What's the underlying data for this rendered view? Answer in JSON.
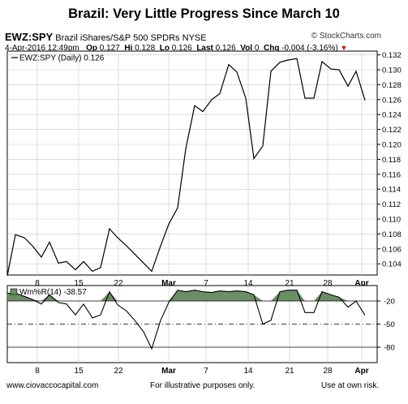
{
  "title": "Brazil: Very Little Progress Since March 10",
  "header": {
    "symbol": "EWZ:SPY",
    "description": "Brazil iShares/S&P 500 SPDRs",
    "exchange": "NYSE",
    "brand": "© StockCharts.com",
    "date": "4-Apr-2016 12:49pm",
    "op_label": "Op",
    "op": "0.127",
    "hi_label": "Hi",
    "hi": "0.128",
    "lo_label": "Lo",
    "lo": "0.126",
    "last_label": "Last",
    "last": "0.126",
    "vol_label": "Vol",
    "vol": "0",
    "chg_label": "Chg",
    "chg": "-0.004 (-3.16%)"
  },
  "footer": {
    "left": "www.ciovaccocapital.com",
    "center": "For illustrative purposes only.",
    "right": "Use at own risk."
  },
  "colors": {
    "line": "#000000",
    "fill": "#6b8e64",
    "grid": "#c8c8c8",
    "down_arrow": "#cc0000"
  },
  "chart_data": [
    {
      "type": "line",
      "legend": "EWZ:SPY (Daily) 0.126",
      "x_ticks": [
        "8",
        "15",
        "22",
        "Mar",
        "7",
        "14",
        "21",
        "28",
        "Apr"
      ],
      "y_ticks": [
        "0.104",
        "0.106",
        "0.108",
        "0.110",
        "0.112",
        "0.114",
        "0.116",
        "0.118",
        "0.120",
        "0.122",
        "0.124",
        "0.126",
        "0.128",
        "0.130",
        "0.132"
      ],
      "ylim": [
        0.1025,
        0.1325
      ],
      "values": [
        0.1024,
        0.1079,
        0.1075,
        0.1064,
        0.1049,
        0.1069,
        0.1041,
        0.1043,
        0.1032,
        0.1043,
        0.103,
        0.1035,
        0.1087,
        0.1075,
        0.1064,
        0.1053,
        0.1041,
        0.103,
        0.1064,
        0.1093,
        0.1115,
        0.1194,
        0.1252,
        0.1244,
        0.126,
        0.1268,
        0.1307,
        0.1297,
        0.1262,
        0.1181,
        0.1198,
        0.1298,
        0.131,
        0.1313,
        0.1315,
        0.1262,
        0.1262,
        0.1311,
        0.1301,
        0.13,
        0.1278,
        0.1298,
        0.1259
      ]
    },
    {
      "type": "area",
      "legend": "Wm%R(14) -38.57",
      "x_ticks": [
        "8",
        "15",
        "22",
        "Mar",
        "7",
        "14",
        "21",
        "28",
        "Apr"
      ],
      "y_ticks": [
        "-20",
        "-50",
        "-80"
      ],
      "ylim": [
        -100,
        0
      ],
      "reference_levels": [
        -20,
        -50,
        -80
      ],
      "values": [
        -10,
        -10,
        -14,
        -18,
        -24,
        -12,
        -22,
        -24,
        -38,
        -24,
        -42,
        -38,
        -8,
        -25,
        -33,
        -45,
        -60,
        -82,
        -45,
        -22,
        -6,
        -8,
        -6,
        -8,
        -9,
        -7,
        -8,
        -7,
        -8,
        -12,
        -50,
        -45,
        -8,
        -6,
        -6,
        -35,
        -35,
        -8,
        -12,
        -15,
        -28,
        -20,
        -38.57
      ]
    }
  ]
}
